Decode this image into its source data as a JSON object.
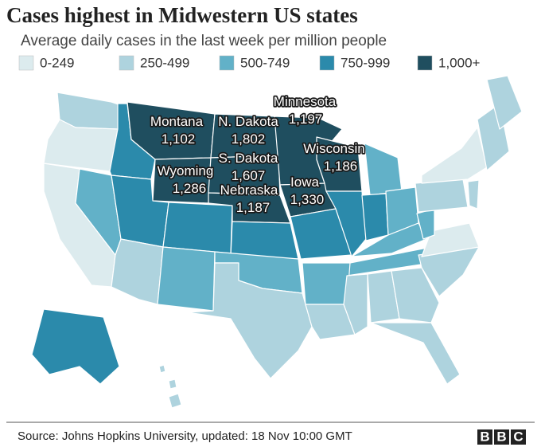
{
  "header": {
    "title": "Cases highest in Midwestern US states",
    "subtitle": "Average daily cases in the last week per million people"
  },
  "legend": [
    {
      "label": "0-249",
      "color": "#dcebee"
    },
    {
      "label": "250-499",
      "color": "#aed3de"
    },
    {
      "label": "500-749",
      "color": "#62b1c8"
    },
    {
      "label": "750-999",
      "color": "#2b8aab"
    },
    {
      "label": "1,000+",
      "color": "#1f4e5f"
    }
  ],
  "labels": [
    {
      "name": "Montana",
      "value": "1,102"
    },
    {
      "name": "N. Dakota",
      "value": "1,802"
    },
    {
      "name": "Minnesota",
      "value": "1,197"
    },
    {
      "name": "S. Dakota",
      "value": "1,607"
    },
    {
      "name": "Wyoming",
      "value": "1,286"
    },
    {
      "name": "Nebraska",
      "value": "1,187"
    },
    {
      "name": "Iowa",
      "value": "1,330"
    },
    {
      "name": "Wisconsin",
      "value": "1,186"
    }
  ],
  "footer": {
    "source": "Source: Johns Hopkins University, updated: 18 Nov 10:00 GMT",
    "logo": [
      "B",
      "B",
      "C"
    ]
  }
}
